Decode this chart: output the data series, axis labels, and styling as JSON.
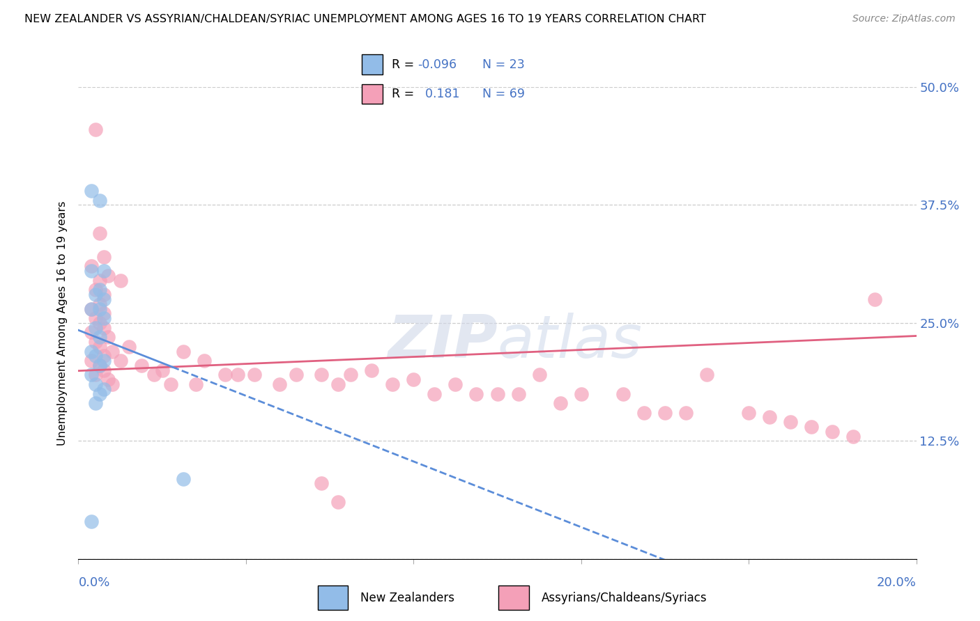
{
  "title": "NEW ZEALANDER VS ASSYRIAN/CHALDEAN/SYRIAC UNEMPLOYMENT AMONG AGES 16 TO 19 YEARS CORRELATION CHART",
  "source": "Source: ZipAtlas.com",
  "ylabel_label": "Unemployment Among Ages 16 to 19 years",
  "legend_entry1": "New Zealanders",
  "legend_entry2": "Assyrians/Chaldeans/Syriacs",
  "R1": -0.096,
  "N1": 23,
  "R2": 0.181,
  "N2": 69,
  "color_blue": "#92bce8",
  "color_pink": "#f4a0b8",
  "color_blue_line": "#5b8dd9",
  "color_pink_line": "#e06080",
  "color_text_blue": "#4472c4",
  "xlim": [
    0.0,
    0.2
  ],
  "ylim": [
    0.0,
    0.5
  ],
  "ytick_vals": [
    0.0,
    0.125,
    0.25,
    0.375,
    0.5
  ],
  "ytick_labels": [
    "",
    "12.5%",
    "25.0%",
    "37.5%",
    "50.0%"
  ],
  "blue_x": [
    0.003,
    0.005,
    0.003,
    0.006,
    0.005,
    0.004,
    0.006,
    0.003,
    0.005,
    0.006,
    0.004,
    0.005,
    0.003,
    0.004,
    0.006,
    0.005,
    0.003,
    0.004,
    0.006,
    0.005,
    0.004,
    0.025,
    0.003
  ],
  "blue_y": [
    0.39,
    0.38,
    0.305,
    0.305,
    0.285,
    0.28,
    0.275,
    0.265,
    0.265,
    0.255,
    0.245,
    0.235,
    0.22,
    0.215,
    0.21,
    0.205,
    0.195,
    0.185,
    0.18,
    0.175,
    0.165,
    0.085,
    0.04
  ],
  "pink_x": [
    0.004,
    0.005,
    0.006,
    0.003,
    0.007,
    0.005,
    0.004,
    0.006,
    0.005,
    0.003,
    0.006,
    0.004,
    0.005,
    0.006,
    0.003,
    0.007,
    0.004,
    0.005,
    0.008,
    0.006,
    0.003,
    0.005,
    0.006,
    0.004,
    0.007,
    0.008,
    0.01,
    0.01,
    0.012,
    0.015,
    0.018,
    0.02,
    0.022,
    0.025,
    0.028,
    0.03,
    0.035,
    0.038,
    0.042,
    0.048,
    0.052,
    0.058,
    0.062,
    0.065,
    0.07,
    0.075,
    0.08,
    0.085,
    0.09,
    0.095,
    0.1,
    0.105,
    0.11,
    0.115,
    0.12,
    0.13,
    0.135,
    0.14,
    0.145,
    0.15,
    0.16,
    0.165,
    0.17,
    0.175,
    0.18,
    0.185,
    0.19,
    0.058,
    0.062
  ],
  "pink_y": [
    0.455,
    0.345,
    0.32,
    0.31,
    0.3,
    0.295,
    0.285,
    0.28,
    0.27,
    0.265,
    0.26,
    0.255,
    0.25,
    0.245,
    0.24,
    0.235,
    0.23,
    0.225,
    0.22,
    0.215,
    0.21,
    0.205,
    0.2,
    0.195,
    0.19,
    0.185,
    0.295,
    0.21,
    0.225,
    0.205,
    0.195,
    0.2,
    0.185,
    0.22,
    0.185,
    0.21,
    0.195,
    0.195,
    0.195,
    0.185,
    0.195,
    0.195,
    0.185,
    0.195,
    0.2,
    0.185,
    0.19,
    0.175,
    0.185,
    0.175,
    0.175,
    0.175,
    0.195,
    0.165,
    0.175,
    0.175,
    0.155,
    0.155,
    0.155,
    0.195,
    0.155,
    0.15,
    0.145,
    0.14,
    0.135,
    0.13,
    0.275,
    0.08,
    0.06
  ]
}
